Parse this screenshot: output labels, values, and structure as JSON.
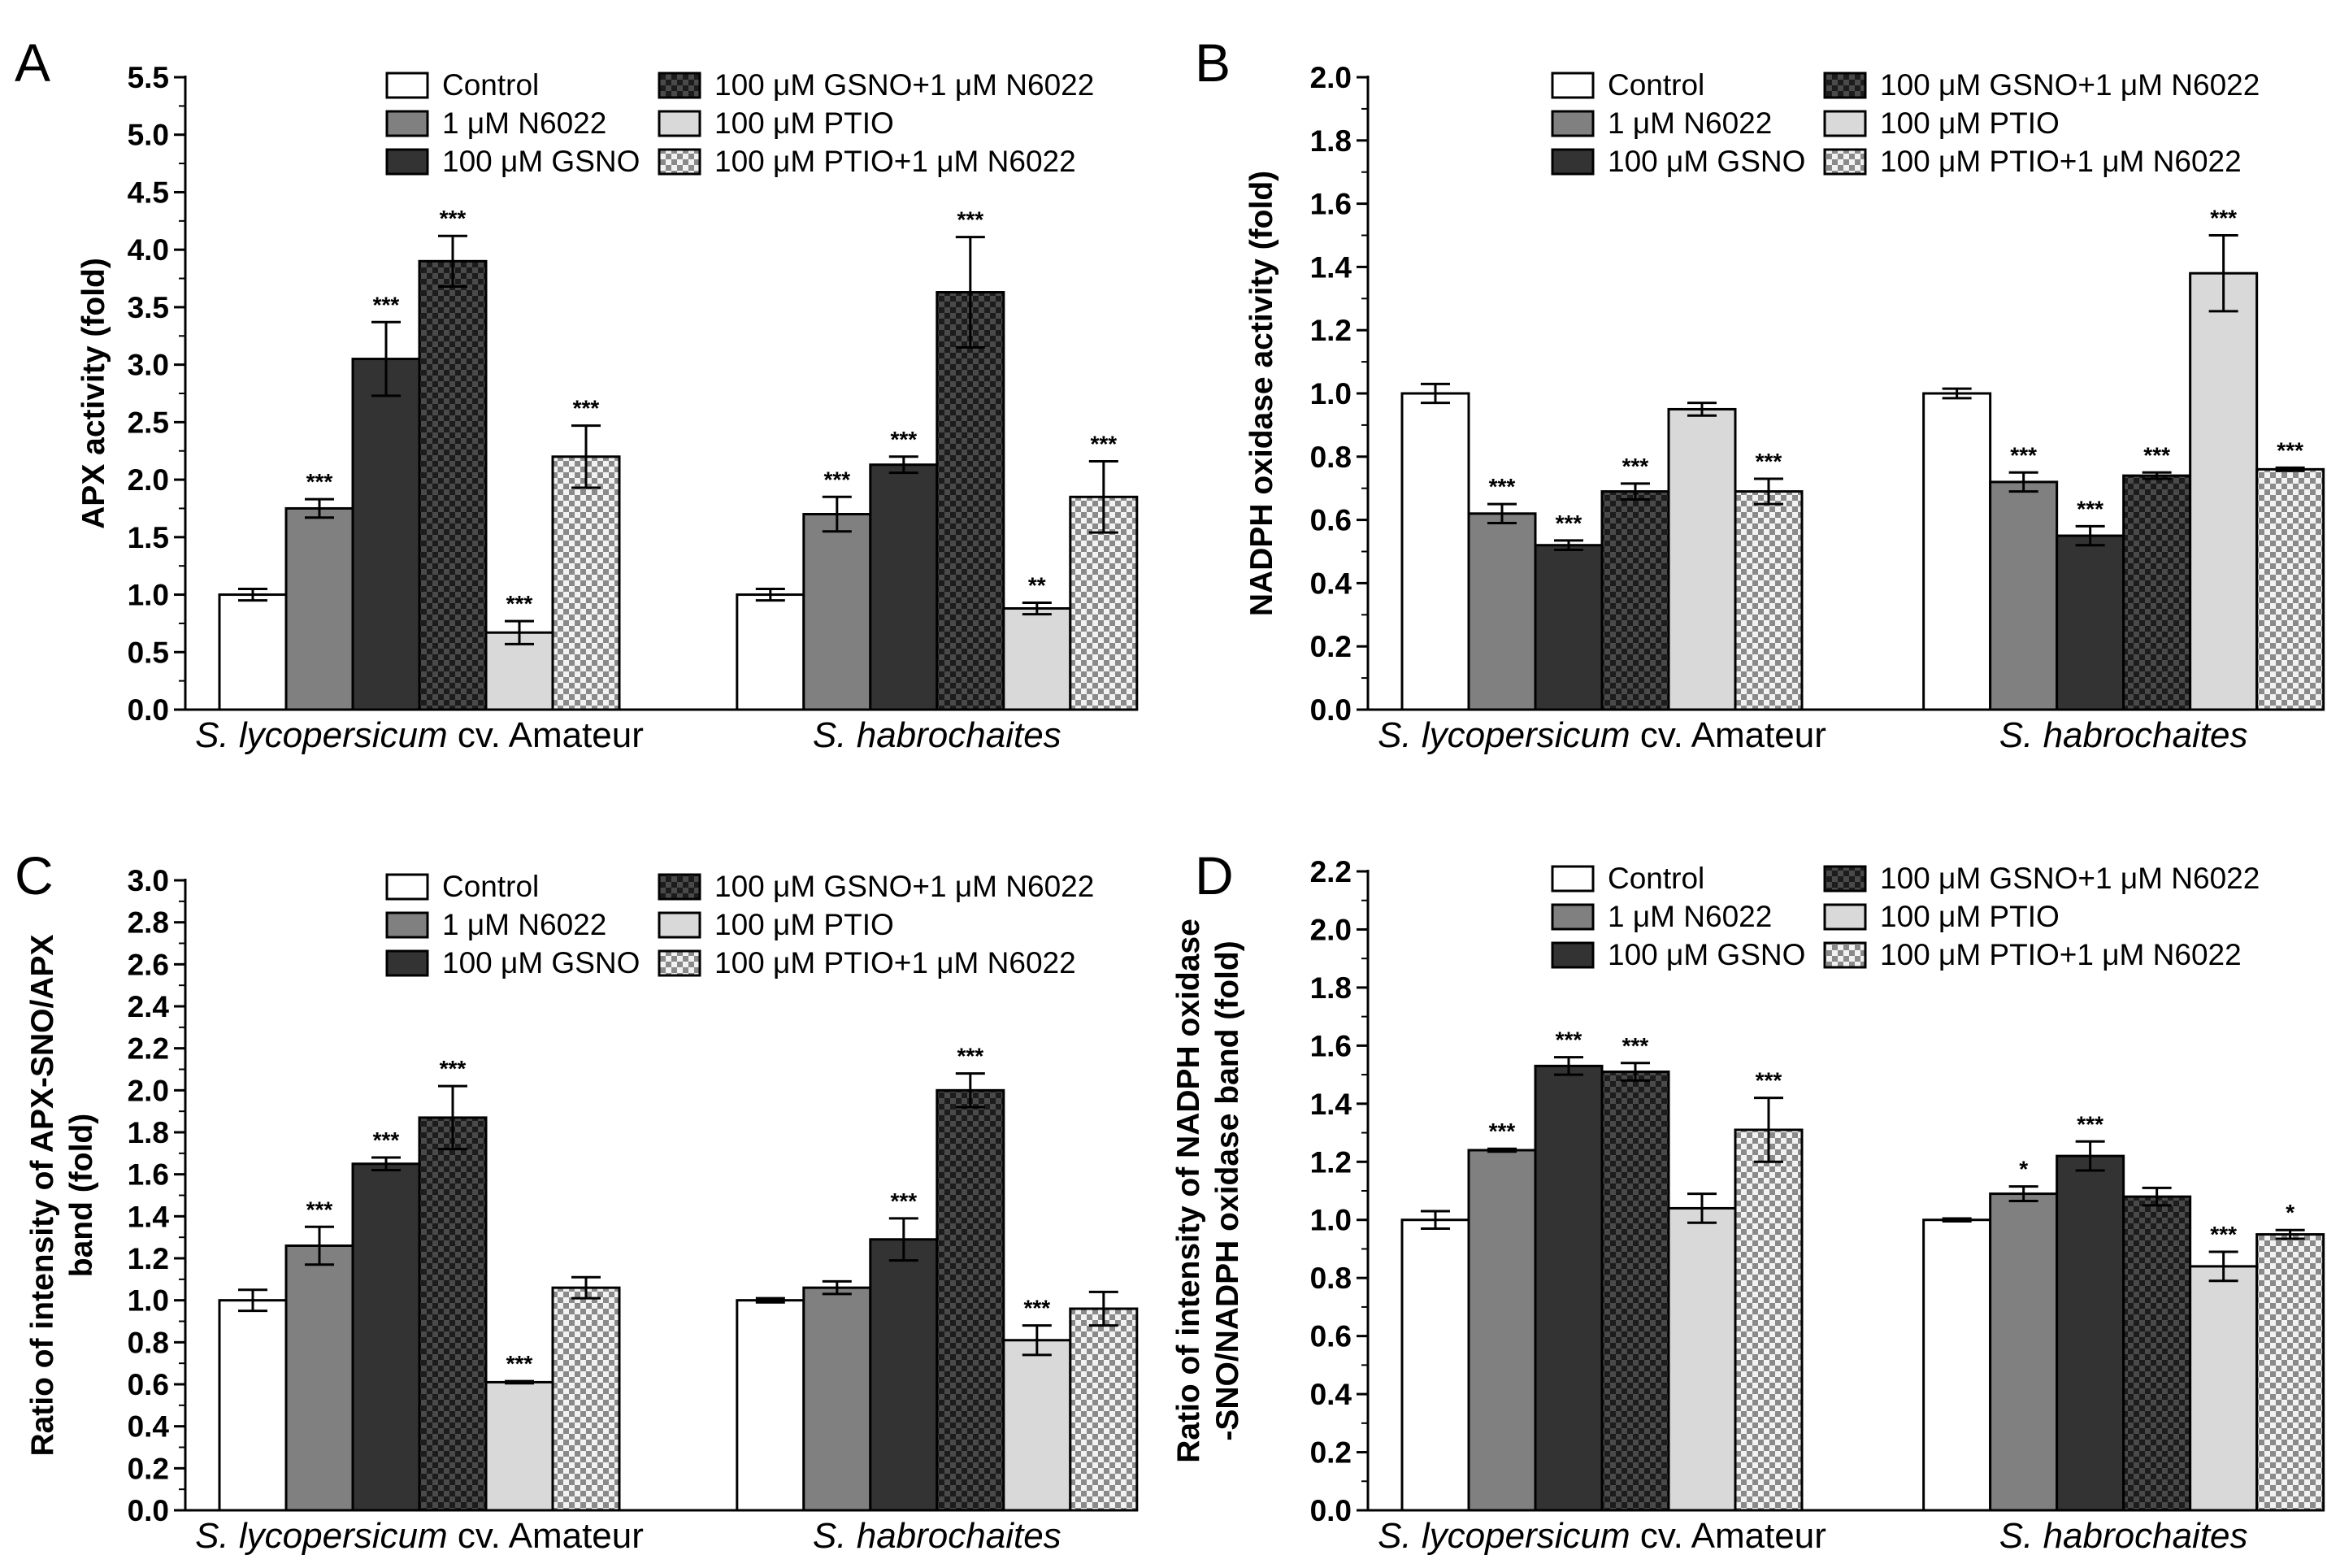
{
  "colors": {
    "control": "#ffffff",
    "n6022": "#808080",
    "gsno": "#333333",
    "gsno_n6022_dark": "#1c1c1c",
    "gsno_n6022_light": "#4a4a4a",
    "ptio": "#d9d9d9",
    "ptio_n6022_dark": "#8a8a8a",
    "ptio_n6022_light": "#f2f2f2",
    "stroke": "#000000"
  },
  "legend": {
    "items": [
      {
        "key": "control",
        "label": "Control"
      },
      {
        "key": "n6022",
        "label": "1 μM N6022"
      },
      {
        "key": "gsno",
        "label": "100 μM GSNO"
      },
      {
        "key": "gsno_n6022",
        "label": "100 μM GSNO+1 μM N6022"
      },
      {
        "key": "ptio",
        "label": "100 μM PTIO"
      },
      {
        "key": "ptio_n6022",
        "label": "100 μM PTIO+1 μM N6022"
      }
    ]
  },
  "chart_data": [
    {
      "panel": "A",
      "type": "bar",
      "ylabel": "APX activity (fold)",
      "ylim": [
        0,
        5.5
      ],
      "yticks": [
        "0.0",
        "0.5",
        "1.0",
        "1.5",
        "2.0",
        "2.5",
        "3.0",
        "3.5",
        "4.0",
        "4.5",
        "5.0",
        "5.5"
      ],
      "ystep": 0.5,
      "categories": [
        {
          "label_italic": "S. lycopersicum",
          "label_plain": " cv. Amateur"
        },
        {
          "label_italic": "S. habrochaites",
          "label_plain": ""
        }
      ],
      "series": [
        {
          "key": "control",
          "values": [
            1.0,
            1.0
          ],
          "errors": [
            0.05,
            0.05
          ],
          "sig": [
            "",
            ""
          ]
        },
        {
          "key": "n6022",
          "values": [
            1.75,
            1.7
          ],
          "errors": [
            0.08,
            0.15
          ],
          "sig": [
            "***",
            "***"
          ]
        },
        {
          "key": "gsno",
          "values": [
            3.05,
            2.13
          ],
          "errors": [
            0.32,
            0.07
          ],
          "sig": [
            "***",
            "***"
          ]
        },
        {
          "key": "gsno_n6022",
          "values": [
            3.9,
            3.63
          ],
          "errors": [
            0.22,
            0.48
          ],
          "sig": [
            "***",
            "***"
          ]
        },
        {
          "key": "ptio",
          "values": [
            0.67,
            0.88
          ],
          "errors": [
            0.1,
            0.05
          ],
          "sig": [
            "***",
            "**"
          ]
        },
        {
          "key": "ptio_n6022",
          "values": [
            2.2,
            1.85
          ],
          "errors": [
            0.27,
            0.31
          ],
          "sig": [
            "***",
            "***"
          ]
        }
      ]
    },
    {
      "panel": "B",
      "type": "bar",
      "ylabel": "NADPH oxidase activity (fold)",
      "ylim": [
        0,
        2.0
      ],
      "yticks": [
        "0.0",
        "0.2",
        "0.4",
        "0.6",
        "0.8",
        "1.0",
        "1.2",
        "1.4",
        "1.6",
        "1.8",
        "2.0"
      ],
      "ystep": 0.2,
      "categories": [
        {
          "label_italic": "S. lycopersicum",
          "label_plain": " cv. Amateur"
        },
        {
          "label_italic": "S. habrochaites",
          "label_plain": ""
        }
      ],
      "series": [
        {
          "key": "control",
          "values": [
            1.0,
            1.0
          ],
          "errors": [
            0.03,
            0.015
          ],
          "sig": [
            "",
            ""
          ]
        },
        {
          "key": "n6022",
          "values": [
            0.62,
            0.72
          ],
          "errors": [
            0.03,
            0.03
          ],
          "sig": [
            "***",
            "***"
          ]
        },
        {
          "key": "gsno",
          "values": [
            0.52,
            0.55
          ],
          "errors": [
            0.015,
            0.03
          ],
          "sig": [
            "***",
            "***"
          ]
        },
        {
          "key": "gsno_n6022",
          "values": [
            0.69,
            0.74
          ],
          "errors": [
            0.025,
            0.01
          ],
          "sig": [
            "***",
            "***"
          ]
        },
        {
          "key": "ptio",
          "values": [
            0.95,
            1.38
          ],
          "errors": [
            0.02,
            0.12
          ],
          "sig": [
            "",
            "***"
          ]
        },
        {
          "key": "ptio_n6022",
          "values": [
            0.69,
            0.76
          ],
          "errors": [
            0.04,
            0.005
          ],
          "sig": [
            "***",
            "***"
          ]
        }
      ]
    },
    {
      "panel": "C",
      "type": "bar",
      "ylabel_lines": [
        "Ratio of intensity of APX-SNO/APX",
        "band (fold)"
      ],
      "ylim": [
        0,
        3.0
      ],
      "yticks": [
        "0.0",
        "0.2",
        "0.4",
        "0.6",
        "0.8",
        "1.0",
        "1.2",
        "1.4",
        "1.6",
        "1.8",
        "2.0",
        "2.2",
        "2.4",
        "2.6",
        "2.8",
        "3.0"
      ],
      "ystep": 0.2,
      "categories": [
        {
          "label_italic": "S. lycopersicum",
          "label_plain": " cv. Amateur"
        },
        {
          "label_italic": "S. habrochaites",
          "label_plain": ""
        }
      ],
      "series": [
        {
          "key": "control",
          "values": [
            1.0,
            1.0
          ],
          "errors": [
            0.05,
            0.01
          ],
          "sig": [
            "",
            ""
          ]
        },
        {
          "key": "n6022",
          "values": [
            1.26,
            1.06
          ],
          "errors": [
            0.09,
            0.03
          ],
          "sig": [
            "***",
            ""
          ]
        },
        {
          "key": "gsno",
          "values": [
            1.65,
            1.29
          ],
          "errors": [
            0.03,
            0.1
          ],
          "sig": [
            "***",
            "***"
          ]
        },
        {
          "key": "gsno_n6022",
          "values": [
            1.87,
            2.0
          ],
          "errors": [
            0.15,
            0.08
          ],
          "sig": [
            "***",
            "***"
          ]
        },
        {
          "key": "ptio",
          "values": [
            0.61,
            0.81
          ],
          "errors": [
            0.005,
            0.07
          ],
          "sig": [
            "***",
            "***"
          ]
        },
        {
          "key": "ptio_n6022",
          "values": [
            1.06,
            0.96
          ],
          "errors": [
            0.05,
            0.08
          ],
          "sig": [
            "",
            ""
          ]
        }
      ]
    },
    {
      "panel": "D",
      "type": "bar",
      "ylabel_lines": [
        "Ratio of intensity of NADPH oxidase",
        "-SNO/NADPH oxidase band (fold)"
      ],
      "ylim": [
        0,
        2.2
      ],
      "yticks": [
        "0.0",
        "0.2",
        "0.4",
        "0.6",
        "0.8",
        "1.0",
        "1.2",
        "1.4",
        "1.6",
        "1.8",
        "2.0",
        "2.2"
      ],
      "ystep": 0.2,
      "categories": [
        {
          "label_italic": "S. lycopersicum",
          "label_plain": " cv. Amateur"
        },
        {
          "label_italic": "S. habrochaites",
          "label_plain": ""
        }
      ],
      "series": [
        {
          "key": "control",
          "values": [
            1.0,
            1.0
          ],
          "errors": [
            0.03,
            0.005
          ],
          "sig": [
            "",
            ""
          ]
        },
        {
          "key": "n6022",
          "values": [
            1.24,
            1.09
          ],
          "errors": [
            0.005,
            0.025
          ],
          "sig": [
            "***",
            "*"
          ]
        },
        {
          "key": "gsno",
          "values": [
            1.53,
            1.22
          ],
          "errors": [
            0.03,
            0.05
          ],
          "sig": [
            "***",
            "***"
          ]
        },
        {
          "key": "gsno_n6022",
          "values": [
            1.51,
            1.08
          ],
          "errors": [
            0.03,
            0.03
          ],
          "sig": [
            "***",
            ""
          ]
        },
        {
          "key": "ptio",
          "values": [
            1.04,
            0.84
          ],
          "errors": [
            0.05,
            0.05
          ],
          "sig": [
            "",
            "***"
          ]
        },
        {
          "key": "ptio_n6022",
          "values": [
            1.31,
            0.95
          ],
          "errors": [
            0.11,
            0.015
          ],
          "sig": [
            "***",
            "*"
          ]
        }
      ]
    }
  ]
}
